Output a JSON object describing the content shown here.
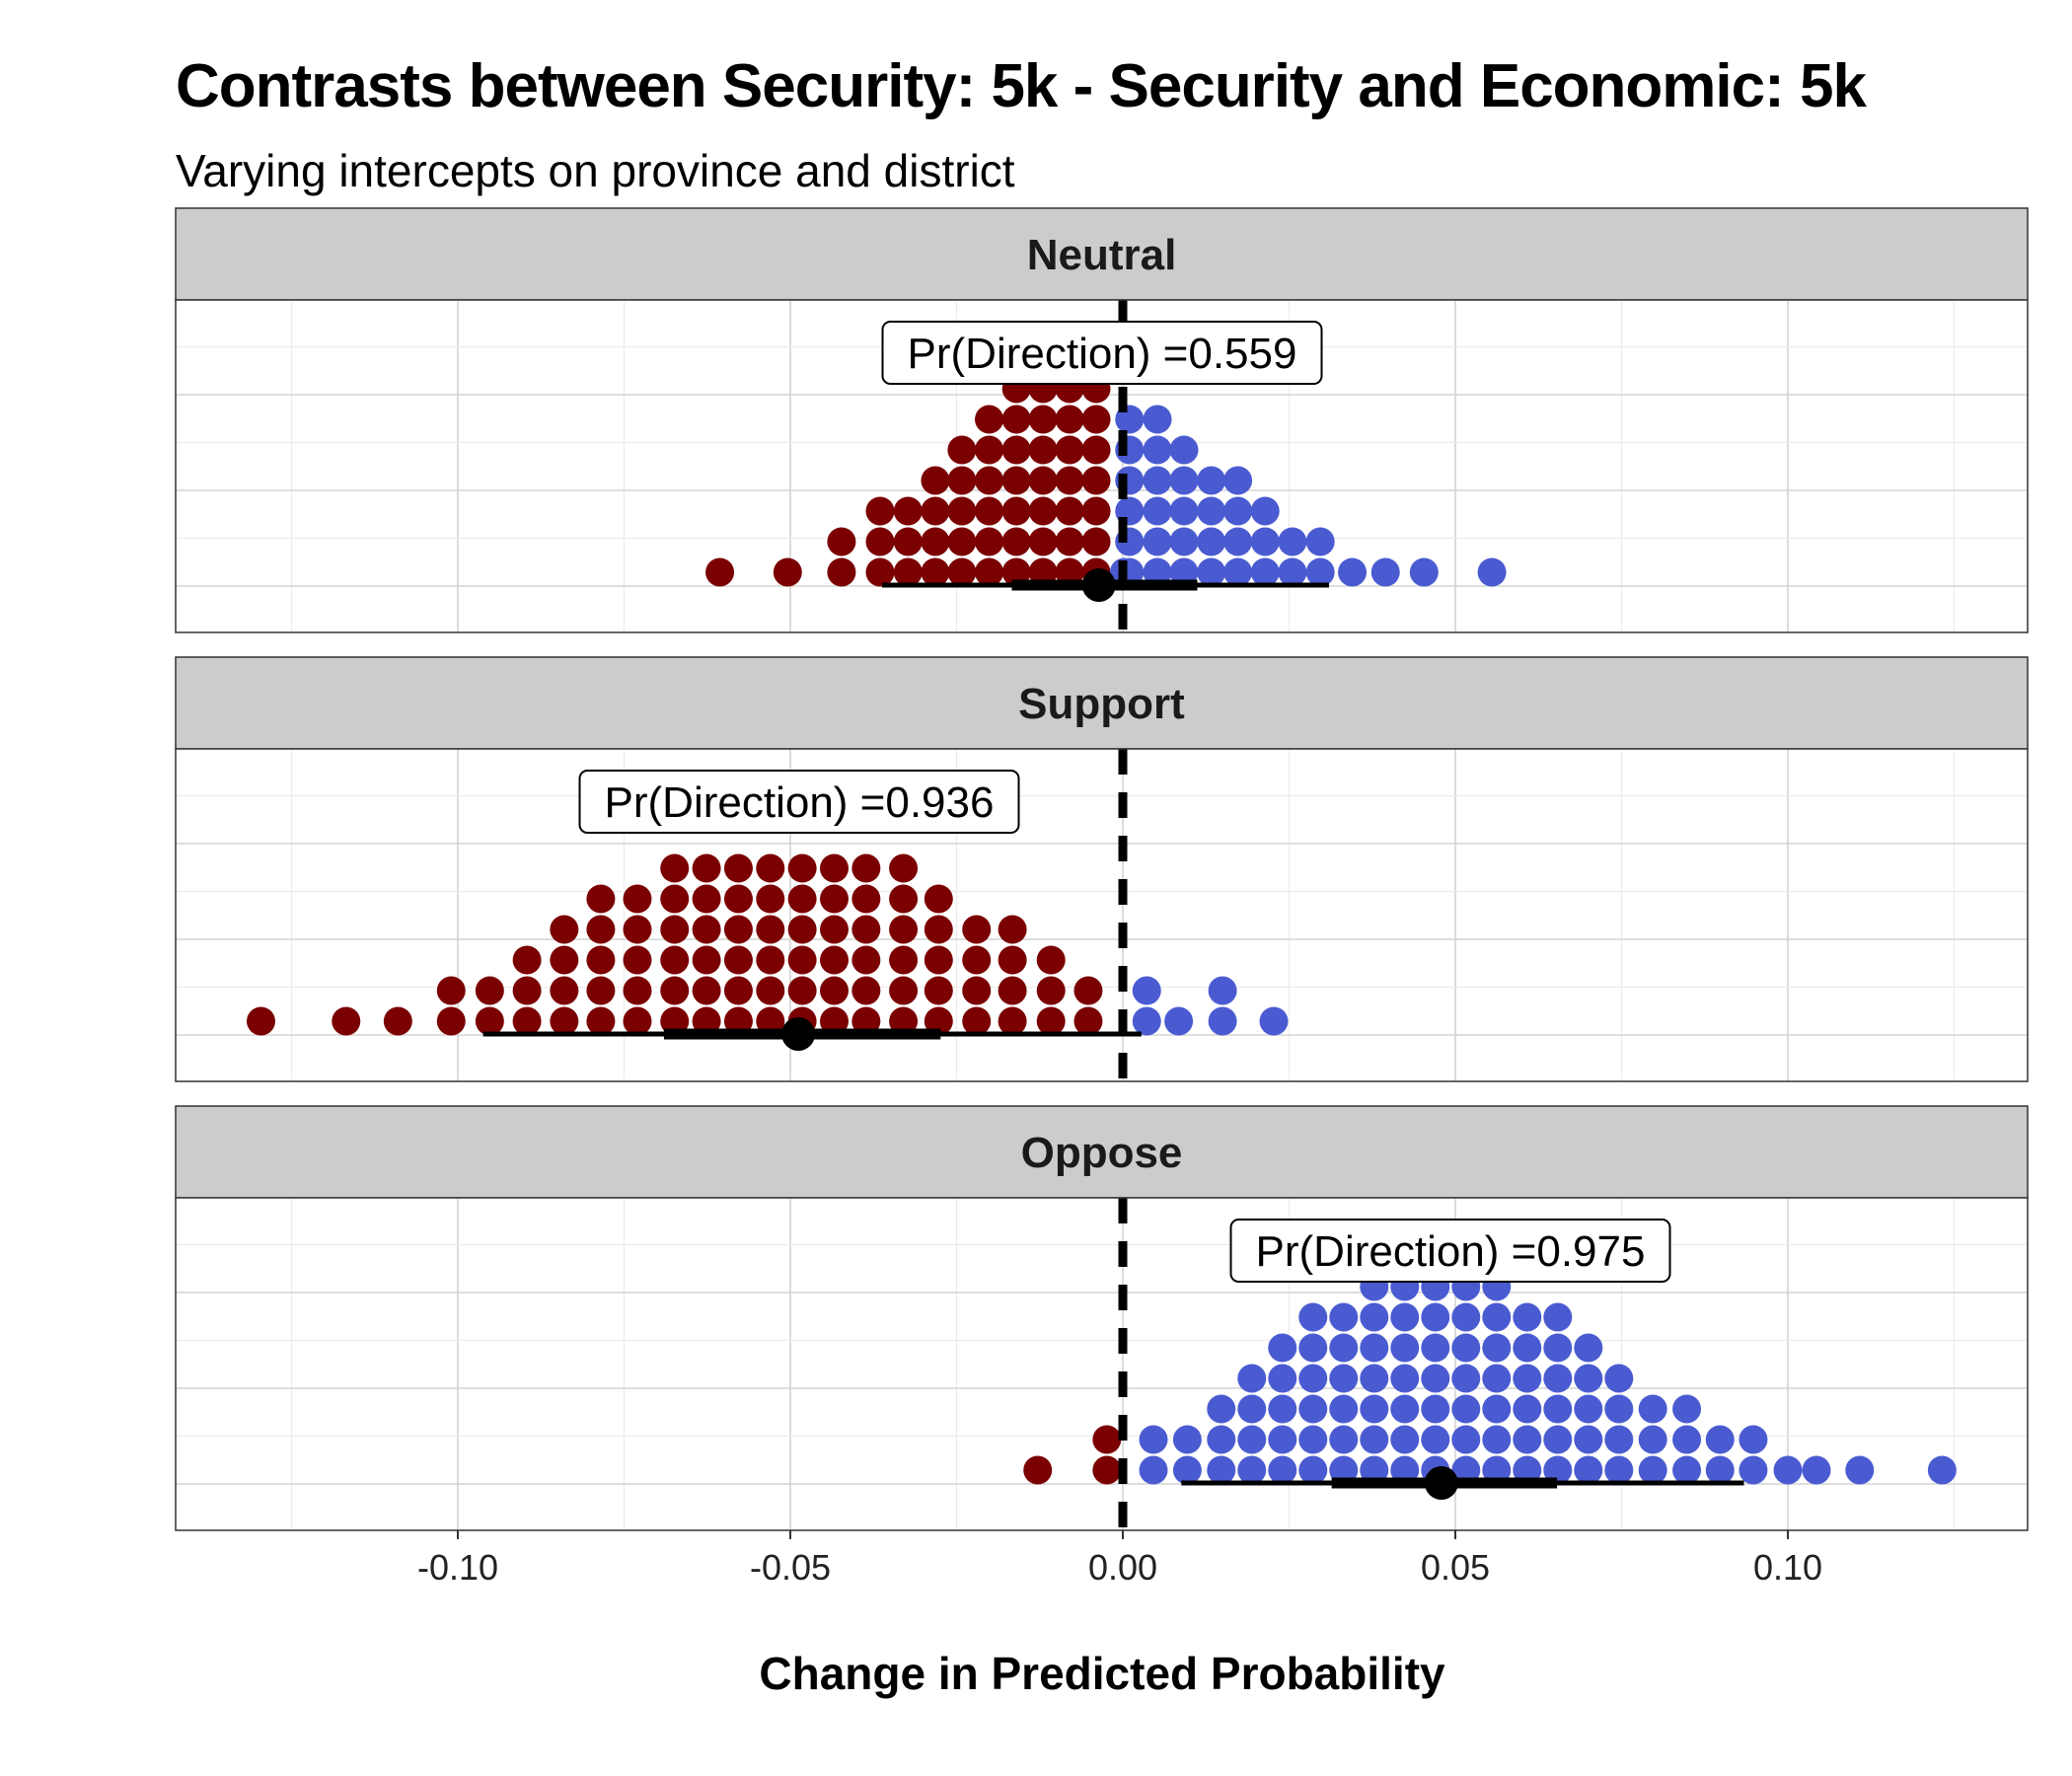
{
  "title": "Contrasts between Security: 5k - Security and Economic: 5k",
  "subtitle": "Varying intercepts on province and district",
  "chart_data": {
    "type": "dotplot",
    "xlabel": "Change in Predicted Probability",
    "xlim": [
      -0.142,
      0.135
    ],
    "xticks": [
      -0.1,
      -0.05,
      0.0,
      0.05,
      0.1
    ],
    "xtick_labels": [
      "-0.10",
      "-0.05",
      "0.00",
      "0.05",
      "0.10"
    ],
    "reference_line": 0,
    "grid": true,
    "colors": {
      "negative": "#7b0000",
      "positive": "#4a5bd1",
      "strip": "#cccccc"
    },
    "panels": [
      {
        "name": "Neutral",
        "label": "Pr(Direction) =0.559",
        "point": -0.0036,
        "interval_inner": [
          -0.0167,
          0.0112
        ],
        "interval_outer": [
          -0.0362,
          0.031
        ],
        "dot_columns": [
          {
            "x": -0.0606,
            "count": 1
          },
          {
            "x": -0.0504,
            "count": 1
          },
          {
            "x": -0.0423,
            "count": 2
          },
          {
            "x": -0.0365,
            "count": 3
          },
          {
            "x": -0.0323,
            "count": 3
          },
          {
            "x": -0.0282,
            "count": 4
          },
          {
            "x": -0.0242,
            "count": 5
          },
          {
            "x": -0.0201,
            "count": 6
          },
          {
            "x": -0.016,
            "count": 7
          },
          {
            "x": -0.012,
            "count": 8
          },
          {
            "x": -0.008,
            "count": 8
          },
          {
            "x": -0.004,
            "count": 7
          },
          {
            "x": 0.0002,
            "count": 1
          },
          {
            "x": 0.001,
            "count": 6
          },
          {
            "x": 0.0052,
            "count": 6
          },
          {
            "x": 0.0092,
            "count": 5
          },
          {
            "x": 0.0133,
            "count": 4
          },
          {
            "x": 0.0173,
            "count": 4
          },
          {
            "x": 0.0214,
            "count": 3
          },
          {
            "x": 0.0255,
            "count": 2
          },
          {
            "x": 0.0297,
            "count": 2
          },
          {
            "x": 0.0345,
            "count": 1
          },
          {
            "x": 0.0395,
            "count": 1
          },
          {
            "x": 0.0453,
            "count": 1
          },
          {
            "x": 0.0555,
            "count": 1
          }
        ]
      },
      {
        "name": "Support",
        "label": "Pr(Direction) =0.936",
        "point": -0.0488,
        "interval_inner": [
          -0.069,
          -0.0274
        ],
        "interval_outer": [
          -0.0962,
          0.0028
        ],
        "dot_columns": [
          {
            "x": -0.1296,
            "count": 1
          },
          {
            "x": -0.1168,
            "count": 1
          },
          {
            "x": -0.109,
            "count": 1
          },
          {
            "x": -0.101,
            "count": 2
          },
          {
            "x": -0.0952,
            "count": 2
          },
          {
            "x": -0.0896,
            "count": 3
          },
          {
            "x": -0.084,
            "count": 4
          },
          {
            "x": -0.0785,
            "count": 5
          },
          {
            "x": -0.073,
            "count": 5
          },
          {
            "x": -0.0674,
            "count": 6
          },
          {
            "x": -0.0626,
            "count": 6
          },
          {
            "x": -0.0578,
            "count": 6
          },
          {
            "x": -0.053,
            "count": 6
          },
          {
            "x": -0.0482,
            "count": 6
          },
          {
            "x": -0.0434,
            "count": 6
          },
          {
            "x": -0.0386,
            "count": 6
          },
          {
            "x": -0.033,
            "count": 6
          },
          {
            "x": -0.0277,
            "count": 5
          },
          {
            "x": -0.022,
            "count": 4
          },
          {
            "x": -0.0166,
            "count": 4
          },
          {
            "x": -0.0108,
            "count": 3
          },
          {
            "x": -0.0052,
            "count": 2
          },
          {
            "x": 0.0036,
            "count": 2
          },
          {
            "x": 0.0084,
            "count": 1
          },
          {
            "x": 0.015,
            "count": 2
          },
          {
            "x": 0.0227,
            "count": 1
          }
        ]
      },
      {
        "name": "Oppose",
        "label": "Pr(Direction) =0.975",
        "point": 0.0479,
        "interval_inner": [
          0.0314,
          0.0653
        ],
        "interval_outer": [
          0.0088,
          0.0934
        ],
        "dot_columns": [
          {
            "x": -0.0128,
            "count": 1,
            "color": "negative"
          },
          {
            "x": -0.0024,
            "count": 2,
            "color": "negative"
          },
          {
            "x": 0.0046,
            "count": 2
          },
          {
            "x": 0.0097,
            "count": 2
          },
          {
            "x": 0.0148,
            "count": 3
          },
          {
            "x": 0.0194,
            "count": 4
          },
          {
            "x": 0.024,
            "count": 5
          },
          {
            "x": 0.0286,
            "count": 6
          },
          {
            "x": 0.0332,
            "count": 6
          },
          {
            "x": 0.0378,
            "count": 7
          },
          {
            "x": 0.0424,
            "count": 7
          },
          {
            "x": 0.047,
            "count": 7
          },
          {
            "x": 0.0516,
            "count": 7
          },
          {
            "x": 0.0562,
            "count": 7
          },
          {
            "x": 0.0608,
            "count": 6
          },
          {
            "x": 0.0654,
            "count": 6
          },
          {
            "x": 0.07,
            "count": 5
          },
          {
            "x": 0.0746,
            "count": 4
          },
          {
            "x": 0.0797,
            "count": 3
          },
          {
            "x": 0.0848,
            "count": 3
          },
          {
            "x": 0.0898,
            "count": 2
          },
          {
            "x": 0.0948,
            "count": 2
          },
          {
            "x": 0.1,
            "count": 1
          },
          {
            "x": 0.1043,
            "count": 1
          },
          {
            "x": 0.1108,
            "count": 1
          },
          {
            "x": 0.1232,
            "count": 1
          }
        ]
      }
    ]
  }
}
